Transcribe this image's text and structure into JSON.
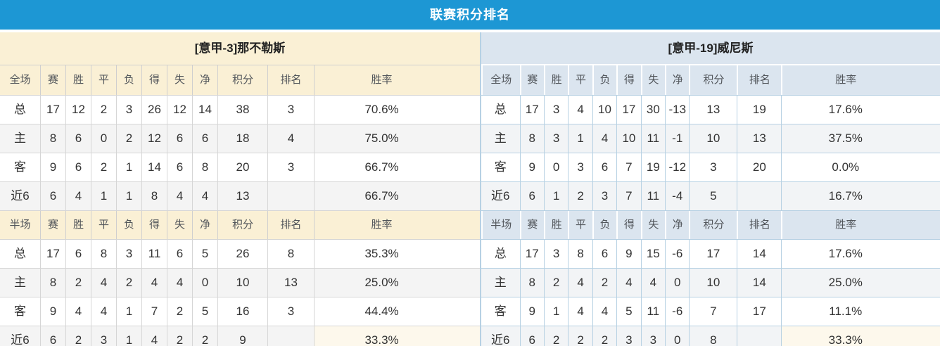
{
  "title": "联赛积分排名",
  "colors": {
    "topbar_blue": "#1d97d4",
    "left_header_bg": "#faf0d5",
    "right_header_bg": "#dbe5ef",
    "value_red": "#f43a20",
    "rank_blue": "#3a87cd",
    "home_label_red": "#e34949",
    "away_label_blue": "#5752da",
    "bottom_rate_cell_cream": "#fdf8ec"
  },
  "left_table": {
    "team": "[意甲-3]那不勒斯",
    "full": {
      "header": [
        "全场",
        "赛",
        "胜",
        "平",
        "负",
        "得",
        "失",
        "净",
        "积分",
        "排名",
        "胜率"
      ],
      "rows": [
        {
          "label": "总",
          "type": "total",
          "values": [
            "17",
            "12",
            "2",
            "3",
            "26",
            "12",
            "14"
          ],
          "points": "38",
          "rank": "3",
          "rate": "70.6%"
        },
        {
          "label": "主",
          "type": "home",
          "values": [
            "8",
            "6",
            "0",
            "2",
            "12",
            "6",
            "6"
          ],
          "points": "18",
          "rank": "4",
          "rate": "75.0%"
        },
        {
          "label": "客",
          "type": "away",
          "values": [
            "9",
            "6",
            "2",
            "1",
            "14",
            "6",
            "8"
          ],
          "points": "20",
          "rank": "3",
          "rate": "66.7%"
        },
        {
          "label": "近6",
          "type": "near6",
          "values": [
            "6",
            "4",
            "1",
            "1",
            "8",
            "4",
            "4"
          ],
          "points": "13",
          "rank": "",
          "rate": "66.7%"
        }
      ]
    },
    "half": {
      "header": [
        "半场",
        "赛",
        "胜",
        "平",
        "负",
        "得",
        "失",
        "净",
        "积分",
        "排名",
        "胜率"
      ],
      "rows": [
        {
          "label": "总",
          "type": "total",
          "values": [
            "17",
            "6",
            "8",
            "3",
            "11",
            "6",
            "5"
          ],
          "points": "26",
          "rank": "8",
          "rate": "35.3%"
        },
        {
          "label": "主",
          "type": "home",
          "values": [
            "8",
            "2",
            "4",
            "2",
            "4",
            "4",
            "0"
          ],
          "points": "10",
          "rank": "13",
          "rate": "25.0%"
        },
        {
          "label": "客",
          "type": "away",
          "values": [
            "9",
            "4",
            "4",
            "1",
            "7",
            "2",
            "5"
          ],
          "points": "16",
          "rank": "3",
          "rate": "44.4%"
        },
        {
          "label": "近6",
          "type": "near6",
          "values": [
            "6",
            "2",
            "3",
            "1",
            "4",
            "2",
            "2"
          ],
          "points": "9",
          "rank": "",
          "rate": "33.3%"
        }
      ]
    }
  },
  "right_table": {
    "team": "[意甲-19]威尼斯",
    "full": {
      "header": [
        "全场",
        "赛",
        "胜",
        "平",
        "负",
        "得",
        "失",
        "净",
        "积分",
        "排名",
        "胜率"
      ],
      "rows": [
        {
          "label": "总",
          "type": "total",
          "values": [
            "17",
            "3",
            "4",
            "10",
            "17",
            "30",
            "-13"
          ],
          "points": "13",
          "rank": "19",
          "rate": "17.6%"
        },
        {
          "label": "主",
          "type": "home",
          "values": [
            "8",
            "3",
            "1",
            "4",
            "10",
            "11",
            "-1"
          ],
          "points": "10",
          "rank": "13",
          "rate": "37.5%"
        },
        {
          "label": "客",
          "type": "away",
          "values": [
            "9",
            "0",
            "3",
            "6",
            "7",
            "19",
            "-12"
          ],
          "points": "3",
          "rank": "20",
          "rate": "0.0%"
        },
        {
          "label": "近6",
          "type": "near6",
          "values": [
            "6",
            "1",
            "2",
            "3",
            "7",
            "11",
            "-4"
          ],
          "points": "5",
          "rank": "",
          "rate": "16.7%"
        }
      ]
    },
    "half": {
      "header": [
        "半场",
        "赛",
        "胜",
        "平",
        "负",
        "得",
        "失",
        "净",
        "积分",
        "排名",
        "胜率"
      ],
      "rows": [
        {
          "label": "总",
          "type": "total",
          "values": [
            "17",
            "3",
            "8",
            "6",
            "9",
            "15",
            "-6"
          ],
          "points": "17",
          "rank": "14",
          "rate": "17.6%"
        },
        {
          "label": "主",
          "type": "home",
          "values": [
            "8",
            "2",
            "4",
            "2",
            "4",
            "4",
            "0"
          ],
          "points": "10",
          "rank": "14",
          "rate": "25.0%"
        },
        {
          "label": "客",
          "type": "away",
          "values": [
            "9",
            "1",
            "4",
            "4",
            "5",
            "11",
            "-6"
          ],
          "points": "7",
          "rank": "17",
          "rate": "11.1%"
        },
        {
          "label": "近6",
          "type": "near6",
          "values": [
            "6",
            "2",
            "2",
            "2",
            "3",
            "3",
            "0"
          ],
          "points": "8",
          "rank": "",
          "rate": "33.3%"
        }
      ]
    }
  }
}
